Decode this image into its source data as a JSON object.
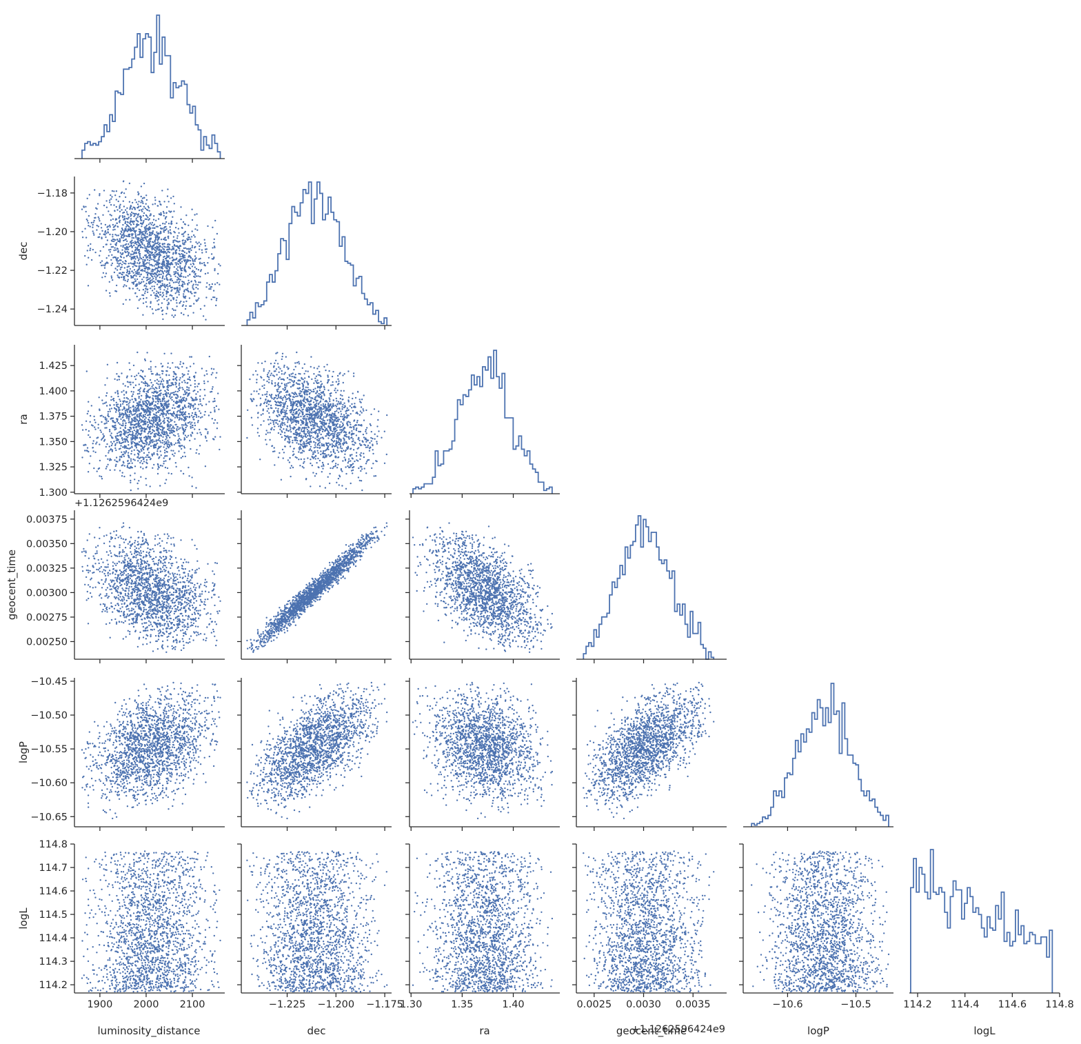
{
  "chart_data": {
    "type": "corner",
    "color": "#4c72b0",
    "n_samples": 1800,
    "variables": [
      {
        "name": "luminosity_distance",
        "label": "luminosity_distance",
        "lim": [
          1845,
          2170
        ],
        "ticks": [
          1900,
          2000,
          2100
        ],
        "tick_labels": [
          "1900",
          "2000",
          "2100"
        ],
        "offset_text": "",
        "mean": 2012,
        "sd": 62,
        "lo": 1860,
        "hi": 2162,
        "dist": "normal"
      },
      {
        "name": "dec",
        "label": "dec",
        "lim": [
          -1.2485,
          -1.1715
        ],
        "ticks": [
          -1.225,
          -1.2,
          -1.175
        ],
        "tick_labels": [
          "−1.225",
          "−1.200",
          "−1.175"
        ],
        "tick_labels_y": [
          "−1.18",
          "−1.20",
          "−1.22",
          "−1.24"
        ],
        "ticks_y": [
          -1.18,
          -1.2,
          -1.22,
          -1.24
        ],
        "offset_text": "",
        "mean": -1.2115,
        "sd": 0.015,
        "lo": -1.2465,
        "hi": -1.1735,
        "dist": "normal"
      },
      {
        "name": "ra",
        "label": "ra",
        "lim": [
          1.2985,
          1.4455
        ],
        "ticks": [
          1.3,
          1.35,
          1.4
        ],
        "tick_labels": [
          "1.30",
          "1.35",
          "1.40"
        ],
        "tick_labels_y": [
          "1.425",
          "1.400",
          "1.375",
          "1.350",
          "1.325",
          "1.300"
        ],
        "ticks_y": [
          1.425,
          1.4,
          1.375,
          1.35,
          1.325,
          1.3
        ],
        "offset_text": "",
        "mean": 1.373,
        "sd": 0.026,
        "lo": 1.3,
        "hi": 1.438,
        "dist": "normal"
      },
      {
        "name": "geocent_time",
        "label": "geocent_time",
        "lim": [
          0.00232,
          0.00384
        ],
        "ticks": [
          0.0025,
          0.003,
          0.0035
        ],
        "tick_labels": [
          "0.0025",
          "0.0030",
          "0.0035"
        ],
        "tick_labels_y": [
          "0.00375",
          "0.00350",
          "0.00325",
          "0.00300",
          "0.00275",
          "0.00250"
        ],
        "ticks_y": [
          0.00375,
          0.0035,
          0.00325,
          0.003,
          0.00275,
          0.0025
        ],
        "offset_text": "+1.1262596424e9",
        "mean": 0.00301,
        "sd": 0.00028,
        "lo": 0.00238,
        "hi": 0.00375,
        "dist": "normal"
      },
      {
        "name": "logP",
        "label": "logP",
        "lim": [
          -10.665,
          -10.445
        ],
        "ticks": [
          -10.6,
          -10.5
        ],
        "tick_labels": [
          "−10.6",
          "−10.5"
        ],
        "tick_labels_y": [
          "−10.45",
          "−10.50",
          "−10.55",
          "−10.60",
          "−10.65"
        ],
        "ticks_y": [
          -10.45,
          -10.5,
          -10.55,
          -10.6,
          -10.65
        ],
        "offset_text": "",
        "mean": -10.548,
        "sd": 0.04,
        "lo": -10.655,
        "hi": -10.452,
        "dist": "normal"
      },
      {
        "name": "logL",
        "label": "logL",
        "lim": [
          114.165,
          114.8
        ],
        "ticks": [
          114.2,
          114.4,
          114.6,
          114.8
        ],
        "tick_labels": [
          "114.2",
          "114.4",
          "114.6",
          "114.8"
        ],
        "tick_labels_y": [
          "114.8",
          "114.7",
          "114.6",
          "114.5",
          "114.4",
          "114.3",
          "114.2"
        ],
        "ticks_y": [
          114.8,
          114.7,
          114.6,
          114.5,
          114.4,
          114.3,
          114.2
        ],
        "offset_text": "",
        "lo": 114.17,
        "hi": 114.77,
        "dist": "decreasing"
      }
    ],
    "correlations": [
      {
        "pair": [
          "luminosity_distance",
          "dec"
        ],
        "rho": -0.35
      },
      {
        "pair": [
          "luminosity_distance",
          "ra"
        ],
        "rho": 0.3
      },
      {
        "pair": [
          "luminosity_distance",
          "geocent_time"
        ],
        "rho": -0.33
      },
      {
        "pair": [
          "luminosity_distance",
          "logP"
        ],
        "rho": 0.35
      },
      {
        "pair": [
          "dec",
          "ra"
        ],
        "rho": -0.45
      },
      {
        "pair": [
          "dec",
          "geocent_time"
        ],
        "rho": 0.98
      },
      {
        "pair": [
          "dec",
          "logP"
        ],
        "rho": 0.62
      },
      {
        "pair": [
          "ra",
          "geocent_time"
        ],
        "rho": -0.55
      },
      {
        "pair": [
          "ra",
          "logP"
        ],
        "rho": -0.22
      },
      {
        "pair": [
          "geocent_time",
          "logP"
        ],
        "rho": 0.6
      }
    ],
    "histogram_bins": 50,
    "scatter_marker": "point",
    "grid": false,
    "legend": "none"
  }
}
